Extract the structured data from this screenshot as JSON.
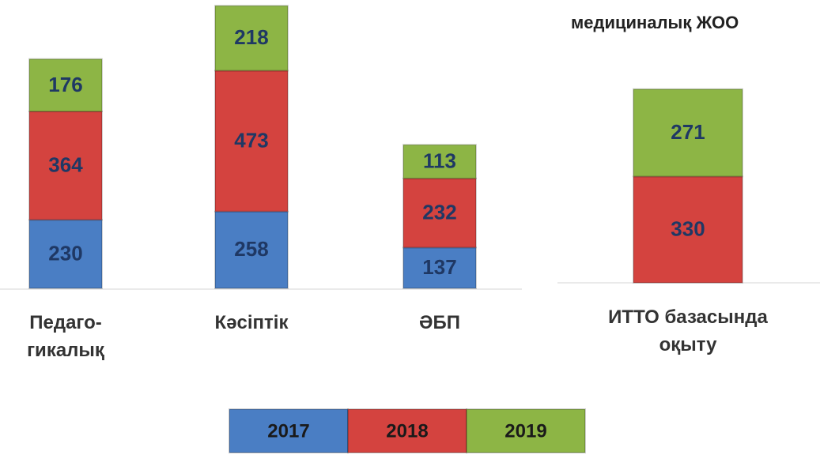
{
  "chart_data": [
    {
      "type": "bar",
      "stacked": true,
      "categories": [
        "Педаго-\nгикалық",
        "Кәсіптік",
        "ӘБП"
      ],
      "series": [
        {
          "name": "2017",
          "color": "#4a7ec4",
          "values": [
            230,
            258,
            137
          ]
        },
        {
          "name": "2018",
          "color": "#d4433f",
          "values": [
            364,
            473,
            232
          ]
        },
        {
          "name": "2019",
          "color": "#8db545",
          "values": [
            176,
            218,
            113
          ]
        }
      ]
    },
    {
      "type": "bar",
      "stacked": true,
      "title": "медициналық ЖОО",
      "categories": [
        "ИТТО базасында\nоқыту"
      ],
      "series": [
        {
          "color": "#d4433f",
          "values": [
            330
          ]
        },
        {
          "color": "#8db545",
          "values": [
            271
          ]
        }
      ]
    }
  ]
}
